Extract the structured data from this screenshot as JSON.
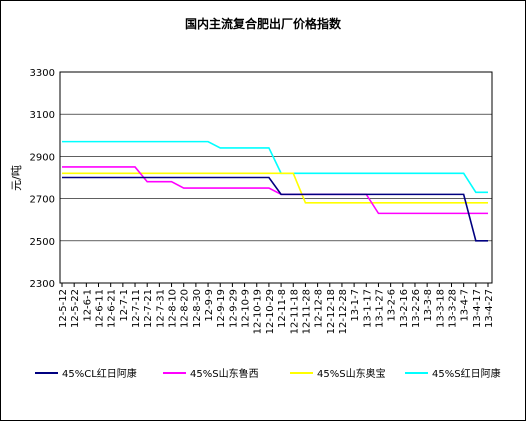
{
  "chart_data": {
    "type": "line",
    "title": "国内主流复合肥出厂价格指数",
    "y_label": "元/吨",
    "categories": [
      "12-5-12",
      "12-5-22",
      "12-6-1",
      "12-6-11",
      "12-6-21",
      "12-7-1",
      "12-7-11",
      "12-7-21",
      "12-7-31",
      "12-8-10",
      "12-8-20",
      "12-8-30",
      "12-9-9",
      "12-9-19",
      "12-9-29",
      "12-10-9",
      "12-10-19",
      "12-10-29",
      "12-11-8",
      "12-11-18",
      "12-11-28",
      "12-12-8",
      "12-12-18",
      "12-12-28",
      "13-1-7",
      "13-1-17",
      "13-1-27",
      "13-2-6",
      "13-2-16",
      "13-2-26",
      "13-3-8",
      "13-3-18",
      "13-3-28",
      "13-4-7",
      "13-4-17",
      "13-4-27"
    ],
    "series": [
      {
        "name": "45%CL红日阿康",
        "color": "#000080",
        "values": [
          2800,
          2800,
          2800,
          2800,
          2800,
          2800,
          2800,
          2800,
          2800,
          2800,
          2800,
          2800,
          2800,
          2800,
          2800,
          2800,
          2800,
          2800,
          2720,
          2720,
          2720,
          2720,
          2720,
          2720,
          2720,
          2720,
          2720,
          2720,
          2720,
          2720,
          2720,
          2720,
          2720,
          2720,
          2500,
          2500
        ]
      },
      {
        "name": "45%S山东鲁西",
        "color": "#ff00ff",
        "values": [
          2850,
          2850,
          2850,
          2850,
          2850,
          2850,
          2850,
          2780,
          2780,
          2780,
          2750,
          2750,
          2750,
          2750,
          2750,
          2750,
          2750,
          2750,
          2720,
          2720,
          2720,
          2720,
          2720,
          2720,
          2720,
          2720,
          2630,
          2630,
          2630,
          2630,
          2630,
          2630,
          2630,
          2630,
          2630,
          2630
        ]
      },
      {
        "name": "45%S山东奥宝",
        "color": "#ffff00",
        "values": [
          2820,
          2820,
          2820,
          2820,
          2820,
          2820,
          2820,
          2820,
          2820,
          2820,
          2820,
          2820,
          2820,
          2820,
          2820,
          2820,
          2820,
          2820,
          2820,
          2820,
          2680,
          2680,
          2680,
          2680,
          2680,
          2680,
          2680,
          2680,
          2680,
          2680,
          2680,
          2680,
          2680,
          2680,
          2680,
          2680
        ]
      },
      {
        "name": "45%S红日阿康",
        "color": "#00ffff",
        "values": [
          2970,
          2970,
          2970,
          2970,
          2970,
          2970,
          2970,
          2970,
          2970,
          2970,
          2970,
          2970,
          2970,
          2940,
          2940,
          2940,
          2940,
          2940,
          2820,
          2820,
          2820,
          2820,
          2820,
          2820,
          2820,
          2820,
          2820,
          2820,
          2820,
          2820,
          2820,
          2820,
          2820,
          2820,
          2730,
          2730
        ]
      }
    ],
    "ylim": [
      2300,
      3300
    ],
    "yticks": [
      2300,
      2500,
      2700,
      2900,
      3100,
      3300
    ],
    "grid": true
  }
}
